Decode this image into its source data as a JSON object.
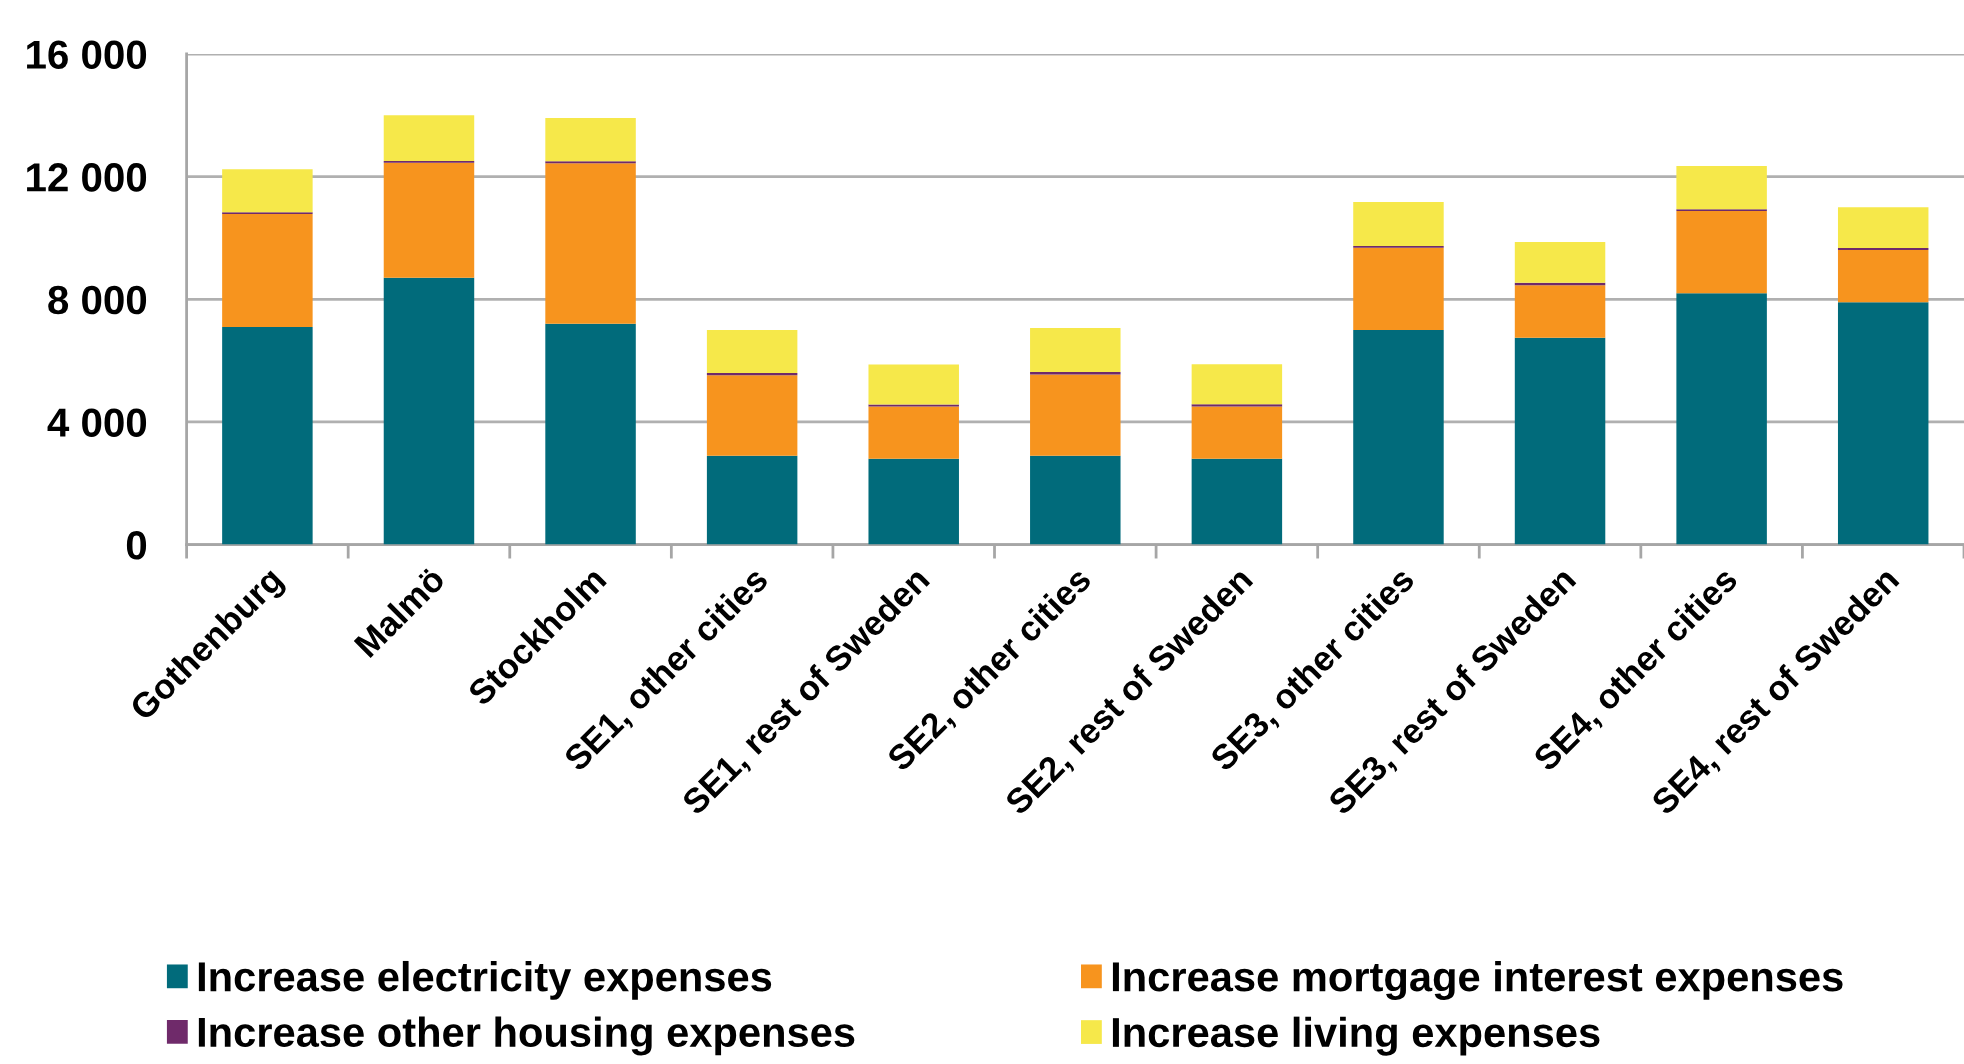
{
  "chart_data": {
    "type": "bar",
    "stacked": true,
    "categories": [
      "Gothenburg",
      "Malmö",
      "Stockholm",
      "SE1, other cities",
      "SE1, rest of Sweden",
      "SE2, other cities",
      "SE2, rest of Sweden",
      "SE3, other cities",
      "SE3, rest of Sweden",
      "SE4, other cities",
      "SE4, rest of Sweden"
    ],
    "series": [
      {
        "name": "Increase electricity expenses",
        "color": "#016b7b",
        "values": [
          7100,
          8700,
          7200,
          2900,
          2800,
          2900,
          2800,
          7000,
          6750,
          8200,
          7900
        ]
      },
      {
        "name": "Increase mortgage interest expenses",
        "color": "#f7941e",
        "values": [
          3680,
          3750,
          5240,
          2620,
          1700,
          2650,
          1700,
          2680,
          1710,
          2680,
          1710
        ]
      },
      {
        "name": "Increase other housing expenses",
        "color": "#6f2a6a",
        "values": [
          60,
          60,
          60,
          80,
          70,
          80,
          80,
          60,
          80,
          60,
          60
        ]
      },
      {
        "name": "Increase living expenses",
        "color": "#f6e84a",
        "values": [
          1400,
          1490,
          1410,
          1400,
          1300,
          1430,
          1300,
          1430,
          1330,
          1410,
          1330
        ]
      }
    ],
    "ylim": [
      0,
      16000
    ],
    "yticks": [
      0,
      {
        "value": 4000,
        "label": "4 000"
      },
      {
        "value": 8000,
        "label": "8 000"
      },
      {
        "value": 12000,
        "label": "12 000"
      },
      {
        "value": 16000,
        "label": "16 000"
      }
    ],
    "grid": "y",
    "legend": "bottom"
  }
}
